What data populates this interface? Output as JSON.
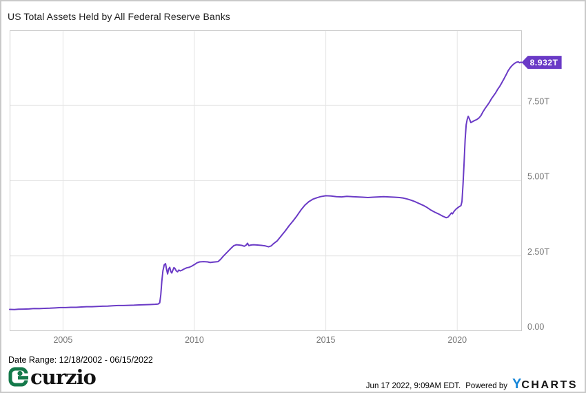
{
  "header": {
    "title": "US Total Assets Held by All Federal Reserve Banks"
  },
  "chart_data": {
    "type": "line",
    "title": "US Total Assets Held by All Federal Reserve Banks",
    "grid": true,
    "legend_position": "none",
    "x_axis": {
      "range": [
        2002.97,
        2022.46
      ],
      "ticks": [
        {
          "value": 2005,
          "label": "2005"
        },
        {
          "value": 2010,
          "label": "2010"
        },
        {
          "value": 2015,
          "label": "2015"
        },
        {
          "value": 2020,
          "label": "2020"
        }
      ]
    },
    "y_axis": {
      "range": [
        0,
        10
      ],
      "unit": "USD trillions",
      "ticks": [
        {
          "value": 0,
          "label": "0.00"
        },
        {
          "value": 2.5,
          "label": "2.50T"
        },
        {
          "value": 5,
          "label": "5.00T"
        },
        {
          "value": 7.5,
          "label": "7.50T"
        }
      ]
    },
    "series": [
      {
        "name": "US Total Assets Held by All Federal Reserve Banks",
        "color": "#6a3ac6",
        "last_value_label": "8.932T",
        "points": [
          [
            2002.97,
            0.72
          ],
          [
            2003.15,
            0.715
          ],
          [
            2003.3,
            0.725
          ],
          [
            2003.5,
            0.73
          ],
          [
            2003.7,
            0.735
          ],
          [
            2003.9,
            0.75
          ],
          [
            2004.1,
            0.745
          ],
          [
            2004.3,
            0.755
          ],
          [
            2004.5,
            0.76
          ],
          [
            2004.7,
            0.77
          ],
          [
            2004.9,
            0.78
          ],
          [
            2005.1,
            0.78
          ],
          [
            2005.3,
            0.79
          ],
          [
            2005.5,
            0.79
          ],
          [
            2005.7,
            0.8
          ],
          [
            2005.9,
            0.81
          ],
          [
            2006.1,
            0.81
          ],
          [
            2006.3,
            0.82
          ],
          [
            2006.5,
            0.825
          ],
          [
            2006.7,
            0.83
          ],
          [
            2006.9,
            0.84
          ],
          [
            2007.1,
            0.85
          ],
          [
            2007.3,
            0.85
          ],
          [
            2007.5,
            0.855
          ],
          [
            2007.7,
            0.86
          ],
          [
            2007.9,
            0.87
          ],
          [
            2008.1,
            0.875
          ],
          [
            2008.3,
            0.88
          ],
          [
            2008.5,
            0.89
          ],
          [
            2008.62,
            0.9
          ],
          [
            2008.68,
            0.94
          ],
          [
            2008.72,
            1.2
          ],
          [
            2008.76,
            1.65
          ],
          [
            2008.8,
            2.0
          ],
          [
            2008.85,
            2.2
          ],
          [
            2008.9,
            2.24
          ],
          [
            2008.94,
            2.05
          ],
          [
            2008.98,
            1.9
          ],
          [
            2009.02,
            2.06
          ],
          [
            2009.06,
            2.12
          ],
          [
            2009.1,
            1.98
          ],
          [
            2009.14,
            1.93
          ],
          [
            2009.18,
            2.02
          ],
          [
            2009.22,
            2.11
          ],
          [
            2009.26,
            2.08
          ],
          [
            2009.31,
            2.0
          ],
          [
            2009.36,
            1.97
          ],
          [
            2009.41,
            2.03
          ],
          [
            2009.46,
            2.0
          ],
          [
            2009.52,
            2.02
          ],
          [
            2009.6,
            2.06
          ],
          [
            2009.7,
            2.1
          ],
          [
            2009.8,
            2.12
          ],
          [
            2009.9,
            2.16
          ],
          [
            2010.0,
            2.21
          ],
          [
            2010.1,
            2.27
          ],
          [
            2010.2,
            2.3
          ],
          [
            2010.35,
            2.31
          ],
          [
            2010.5,
            2.3
          ],
          [
            2010.6,
            2.28
          ],
          [
            2010.7,
            2.29
          ],
          [
            2010.8,
            2.3
          ],
          [
            2010.9,
            2.31
          ],
          [
            2011.0,
            2.39
          ],
          [
            2011.1,
            2.49
          ],
          [
            2011.2,
            2.58
          ],
          [
            2011.3,
            2.67
          ],
          [
            2011.4,
            2.76
          ],
          [
            2011.5,
            2.84
          ],
          [
            2011.6,
            2.87
          ],
          [
            2011.7,
            2.86
          ],
          [
            2011.8,
            2.85
          ],
          [
            2011.9,
            2.82
          ],
          [
            2011.97,
            2.86
          ],
          [
            2012.02,
            2.92
          ],
          [
            2012.07,
            2.84
          ],
          [
            2012.15,
            2.86
          ],
          [
            2012.25,
            2.87
          ],
          [
            2012.4,
            2.86
          ],
          [
            2012.55,
            2.85
          ],
          [
            2012.7,
            2.83
          ],
          [
            2012.82,
            2.8
          ],
          [
            2012.92,
            2.83
          ],
          [
            2013.0,
            2.9
          ],
          [
            2013.15,
            3.0
          ],
          [
            2013.3,
            3.16
          ],
          [
            2013.45,
            3.32
          ],
          [
            2013.6,
            3.5
          ],
          [
            2013.75,
            3.66
          ],
          [
            2013.9,
            3.83
          ],
          [
            2014.05,
            4.02
          ],
          [
            2014.2,
            4.18
          ],
          [
            2014.35,
            4.3
          ],
          [
            2014.5,
            4.38
          ],
          [
            2014.65,
            4.43
          ],
          [
            2014.8,
            4.47
          ],
          [
            2015.0,
            4.5
          ],
          [
            2015.2,
            4.49
          ],
          [
            2015.4,
            4.47
          ],
          [
            2015.6,
            4.46
          ],
          [
            2015.8,
            4.48
          ],
          [
            2016.0,
            4.47
          ],
          [
            2016.2,
            4.46
          ],
          [
            2016.4,
            4.45
          ],
          [
            2016.6,
            4.44
          ],
          [
            2016.8,
            4.45
          ],
          [
            2017.0,
            4.46
          ],
          [
            2017.2,
            4.47
          ],
          [
            2017.4,
            4.46
          ],
          [
            2017.6,
            4.45
          ],
          [
            2017.8,
            4.44
          ],
          [
            2017.95,
            4.42
          ],
          [
            2018.1,
            4.39
          ],
          [
            2018.25,
            4.35
          ],
          [
            2018.4,
            4.3
          ],
          [
            2018.55,
            4.24
          ],
          [
            2018.7,
            4.18
          ],
          [
            2018.85,
            4.11
          ],
          [
            2019.0,
            4.02
          ],
          [
            2019.15,
            3.95
          ],
          [
            2019.3,
            3.89
          ],
          [
            2019.45,
            3.82
          ],
          [
            2019.58,
            3.77
          ],
          [
            2019.65,
            3.79
          ],
          [
            2019.72,
            3.86
          ],
          [
            2019.78,
            3.93
          ],
          [
            2019.82,
            3.9
          ],
          [
            2019.88,
            3.98
          ],
          [
            2019.95,
            4.05
          ],
          [
            2020.02,
            4.1
          ],
          [
            2020.08,
            4.14
          ],
          [
            2020.14,
            4.17
          ],
          [
            2020.18,
            4.31
          ],
          [
            2020.22,
            4.87
          ],
          [
            2020.26,
            5.56
          ],
          [
            2020.3,
            6.37
          ],
          [
            2020.34,
            6.86
          ],
          [
            2020.38,
            7.04
          ],
          [
            2020.42,
            7.14
          ],
          [
            2020.46,
            7.06
          ],
          [
            2020.52,
            6.93
          ],
          [
            2020.58,
            6.96
          ],
          [
            2020.66,
            7.0
          ],
          [
            2020.74,
            7.03
          ],
          [
            2020.82,
            7.08
          ],
          [
            2020.9,
            7.16
          ],
          [
            2020.98,
            7.29
          ],
          [
            2021.06,
            7.4
          ],
          [
            2021.14,
            7.5
          ],
          [
            2021.22,
            7.6
          ],
          [
            2021.3,
            7.72
          ],
          [
            2021.38,
            7.82
          ],
          [
            2021.46,
            7.92
          ],
          [
            2021.54,
            8.04
          ],
          [
            2021.62,
            8.14
          ],
          [
            2021.7,
            8.26
          ],
          [
            2021.78,
            8.39
          ],
          [
            2021.86,
            8.52
          ],
          [
            2021.94,
            8.66
          ],
          [
            2022.02,
            8.76
          ],
          [
            2022.1,
            8.84
          ],
          [
            2022.18,
            8.9
          ],
          [
            2022.26,
            8.94
          ],
          [
            2022.32,
            8.95
          ],
          [
            2022.38,
            8.92
          ],
          [
            2022.42,
            8.94
          ],
          [
            2022.45,
            8.932
          ]
        ]
      }
    ],
    "colors": {
      "line": "#6a3ac6",
      "badge_bg": "#6a3ac6",
      "badge_text": "#ffffff",
      "grid": "#e4e4e4",
      "plot_border": "#cccccc",
      "axis_text": "#757575"
    }
  },
  "footer": {
    "date_range": "Date Range: 12/18/2002 - 06/15/2022",
    "brand": "curzio",
    "brand_color": "#14794a",
    "timestamp": "Jun 17 2022, 9:09AM EDT.",
    "powered_by_label": "Powered by",
    "ycharts_y": "Y",
    "ycharts_rest": "CHARTS",
    "ycharts_y_color": "#1686d8"
  }
}
